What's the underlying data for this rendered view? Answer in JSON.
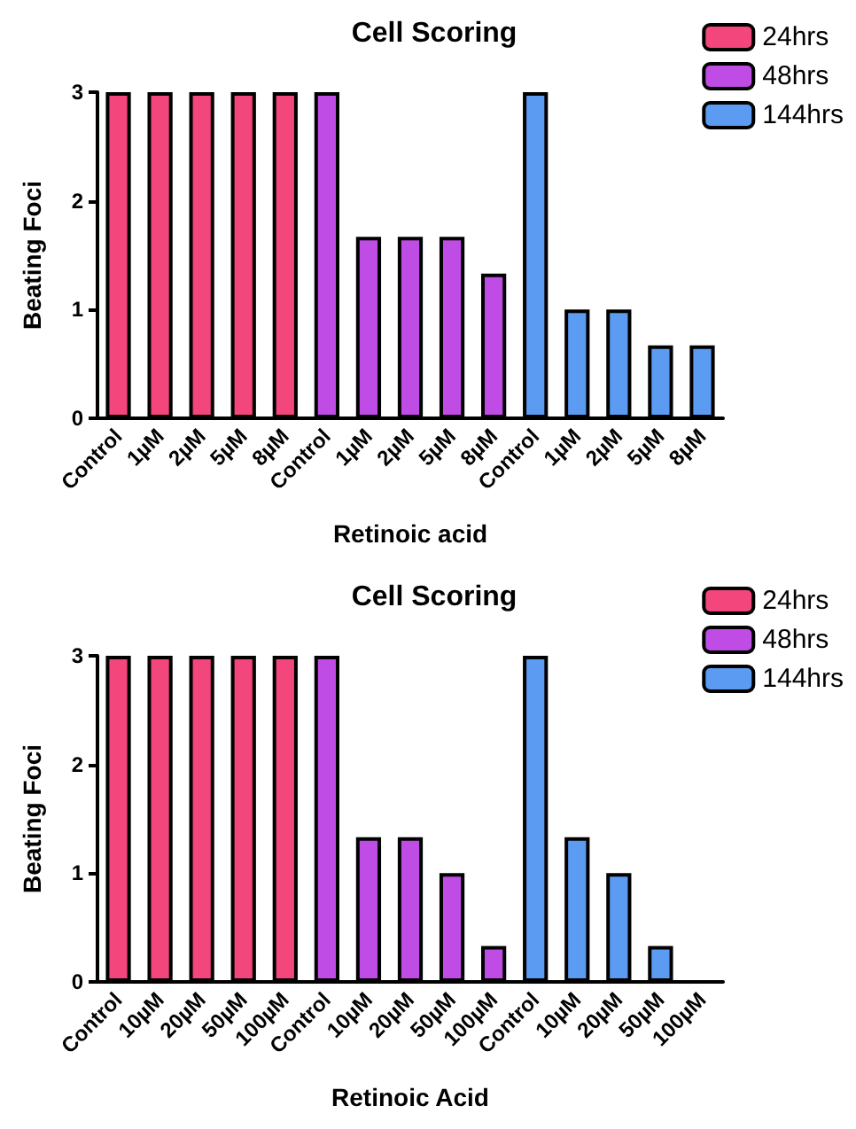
{
  "chart_data": [
    {
      "type": "bar",
      "title": "Cell Scoring",
      "xlabel": "Retinoic acid",
      "ylabel": "Beating Foci",
      "categories": [
        "Control",
        "1µM",
        "2µM",
        "5µM",
        "8µM",
        "Control",
        "1µM",
        "2µM",
        "5µM",
        "8µM",
        "Control",
        "1µM",
        "2µM",
        "5µM",
        "8µM"
      ],
      "series": [
        {
          "name": "24hrs",
          "color": "#f2467c",
          "values": [
            3,
            3,
            3,
            3,
            3,
            null,
            null,
            null,
            null,
            null,
            null,
            null,
            null,
            null,
            null
          ]
        },
        {
          "name": "48hrs",
          "color": "#c04ce6",
          "values": [
            null,
            null,
            null,
            null,
            null,
            3,
            1.67,
            1.67,
            1.67,
            1.33,
            null,
            null,
            null,
            null,
            null
          ]
        },
        {
          "name": "144hrs",
          "color": "#5b9cf2",
          "values": [
            null,
            null,
            null,
            null,
            null,
            null,
            null,
            null,
            null,
            null,
            3,
            1,
            1,
            0.67,
            0.67
          ]
        }
      ],
      "ylim": [
        0,
        3
      ],
      "yticks": [
        0,
        1,
        2,
        3
      ],
      "grid": false,
      "legend": "top right"
    },
    {
      "type": "bar",
      "title": "Cell Scoring",
      "xlabel": "Retinoic Acid",
      "ylabel": "Beating Foci",
      "categories": [
        "Control",
        "10µM",
        "20µM",
        "50µM",
        "100µM",
        "Control",
        "10µM",
        "20µM",
        "50µM",
        "100µM",
        "Control",
        "10µM",
        "20µM",
        "50µM",
        "100µM"
      ],
      "series": [
        {
          "name": "24hrs",
          "color": "#f2467c",
          "values": [
            3,
            3,
            3,
            3,
            3,
            null,
            null,
            null,
            null,
            null,
            null,
            null,
            null,
            null,
            null
          ]
        },
        {
          "name": "48hrs",
          "color": "#c04ce6",
          "values": [
            null,
            null,
            null,
            null,
            null,
            3,
            1.33,
            1.33,
            1,
            0.33,
            null,
            null,
            null,
            null,
            null
          ]
        },
        {
          "name": "144hrs",
          "color": "#5b9cf2",
          "values": [
            null,
            null,
            null,
            null,
            null,
            null,
            null,
            null,
            null,
            null,
            3,
            1.33,
            1,
            0.33,
            0
          ]
        }
      ],
      "ylim": [
        0,
        3
      ],
      "yticks": [
        0,
        1,
        2,
        3
      ],
      "grid": false,
      "legend": "top right"
    }
  ]
}
